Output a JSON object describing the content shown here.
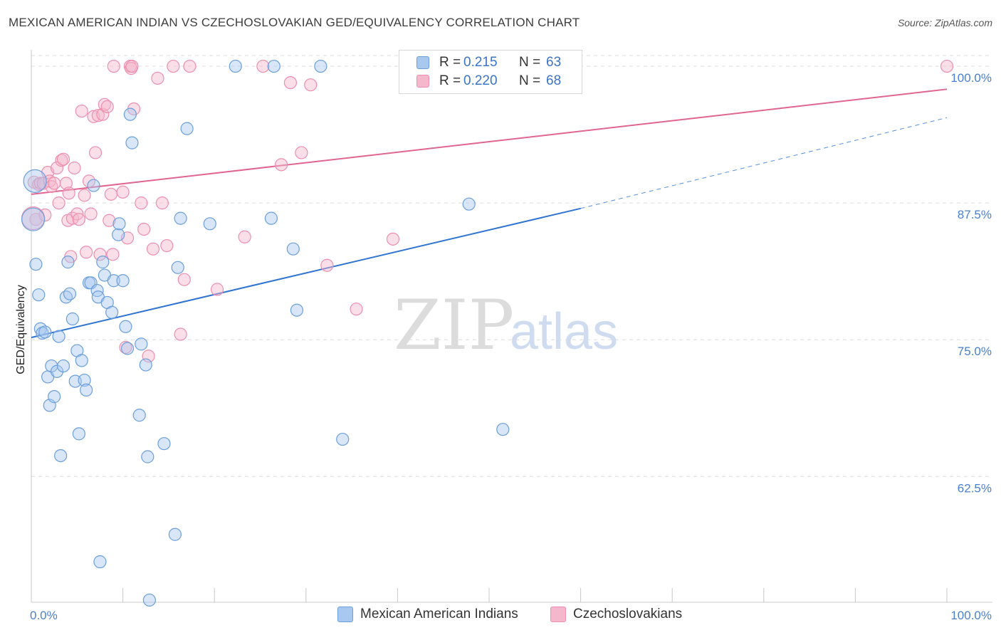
{
  "header": {
    "title": "MEXICAN AMERICAN INDIAN VS CZECHOSLOVAKIAN GED/EQUIVALENCY CORRELATION CHART",
    "source": "Source: ZipAtlas.com"
  },
  "watermark": {
    "part1": "ZIP",
    "part2": "atlas"
  },
  "legend": {
    "rows": [
      {
        "r_label": "R =",
        "r_value": "0.215",
        "n_label": "N =",
        "n_value": "63"
      },
      {
        "r_label": "R =",
        "r_value": "0.220",
        "n_label": "N =",
        "n_value": "68"
      }
    ]
  },
  "chart_data": {
    "type": "scatter",
    "title": "MEXICAN AMERICAN INDIAN VS CZECHOSLOVAKIAN GED/EQUIVALENCY CORRELATION CHART",
    "xlabel": "",
    "ylabel": "GED/Equivalency",
    "xlim": [
      0,
      100
    ],
    "ylim": [
      51.0,
      101.5
    ],
    "x_ticks": [
      {
        "value": 0,
        "label": "0.0%"
      },
      {
        "value": 100,
        "label": "100.0%"
      }
    ],
    "y_ticks": [
      {
        "value": 62.5,
        "label": "62.5%"
      },
      {
        "value": 75.0,
        "label": "75.0%"
      },
      {
        "value": 87.5,
        "label": "87.5%"
      },
      {
        "value": 100.0,
        "label": "100.0%"
      }
    ],
    "colors": {
      "blue_fill": "#a9c8ef",
      "blue_stroke": "#6b9fdc",
      "blue_line": "#2f74d0",
      "pink_fill": "#f5b7cb",
      "pink_stroke": "#ec8fae",
      "pink_line": "#e0668f",
      "tick_text": "#4a7fd0",
      "grid": "#dedede"
    },
    "series": [
      {
        "name": "Mexican American Indians",
        "r": 0.215,
        "n": 63,
        "trend": {
          "x0": 0,
          "y0": 75.2,
          "x1": 60,
          "y1": 87.0,
          "dashed_to_x": 100,
          "dashed_to_y": 95.3
        },
        "points": [
          [
            0.5,
            81.9
          ],
          [
            0.8,
            79.1
          ],
          [
            1.0,
            76.0
          ],
          [
            1.2,
            75.6
          ],
          [
            1.5,
            75.7
          ],
          [
            1.8,
            71.6
          ],
          [
            2.0,
            69.0
          ],
          [
            2.2,
            72.6
          ],
          [
            2.5,
            69.8
          ],
          [
            2.8,
            72.1
          ],
          [
            3.0,
            75.3
          ],
          [
            3.2,
            64.4
          ],
          [
            3.5,
            72.6
          ],
          [
            3.8,
            78.9
          ],
          [
            4.0,
            82.1
          ],
          [
            4.2,
            79.2
          ],
          [
            4.5,
            76.9
          ],
          [
            4.8,
            71.2
          ],
          [
            5.0,
            74.0
          ],
          [
            5.2,
            66.4
          ],
          [
            5.5,
            73.1
          ],
          [
            5.8,
            71.3
          ],
          [
            6.0,
            70.4
          ],
          [
            6.3,
            80.2
          ],
          [
            6.5,
            80.2
          ],
          [
            6.8,
            89.1
          ],
          [
            7.2,
            79.5
          ],
          [
            7.3,
            78.9
          ],
          [
            7.5,
            54.7
          ],
          [
            7.8,
            82.1
          ],
          [
            8.0,
            80.9
          ],
          [
            8.3,
            78.4
          ],
          [
            8.8,
            77.5
          ],
          [
            9.0,
            80.4
          ],
          [
            9.5,
            84.6
          ],
          [
            9.6,
            85.6
          ],
          [
            10.0,
            80.4
          ],
          [
            10.3,
            76.2
          ],
          [
            10.5,
            74.2
          ],
          [
            10.8,
            95.6
          ],
          [
            11.0,
            93.0
          ],
          [
            11.8,
            68.1
          ],
          [
            12.0,
            74.6
          ],
          [
            12.5,
            72.7
          ],
          [
            12.7,
            64.3
          ],
          [
            12.9,
            51.2
          ],
          [
            14.5,
            65.5
          ],
          [
            15.7,
            57.2
          ],
          [
            16.0,
            81.6
          ],
          [
            16.3,
            86.1
          ],
          [
            17.0,
            94.3
          ],
          [
            19.5,
            85.6
          ],
          [
            22.3,
            100.0
          ],
          [
            26.2,
            86.1
          ],
          [
            26.5,
            100.0
          ],
          [
            28.6,
            83.3
          ],
          [
            29.0,
            77.7
          ],
          [
            31.6,
            100.0
          ],
          [
            34.0,
            65.9
          ],
          [
            47.8,
            87.4
          ],
          [
            51.5,
            66.8
          ],
          [
            0.2,
            86.0
          ],
          [
            0.4,
            89.5
          ]
        ]
      },
      {
        "name": "Czechoslovakians",
        "r": 0.22,
        "n": 68,
        "trend": {
          "x0": 0,
          "y0": 88.3,
          "x1": 100,
          "y1": 97.9
        },
        "points": [
          [
            0.3,
            89.4
          ],
          [
            0.5,
            86.0
          ],
          [
            0.8,
            89.2
          ],
          [
            1.0,
            89.3
          ],
          [
            1.3,
            89.3
          ],
          [
            1.5,
            86.4
          ],
          [
            1.8,
            90.3
          ],
          [
            2.0,
            89.5
          ],
          [
            2.2,
            89.0
          ],
          [
            2.5,
            89.3
          ],
          [
            2.8,
            90.7
          ],
          [
            3.0,
            87.5
          ],
          [
            3.3,
            91.4
          ],
          [
            3.5,
            91.5
          ],
          [
            3.8,
            89.3
          ],
          [
            4.0,
            85.9
          ],
          [
            4.1,
            88.4
          ],
          [
            4.3,
            82.6
          ],
          [
            4.5,
            86.1
          ],
          [
            4.7,
            90.7
          ],
          [
            5.0,
            86.5
          ],
          [
            5.2,
            86.0
          ],
          [
            5.5,
            95.9
          ],
          [
            5.8,
            88.2
          ],
          [
            6.0,
            83.0
          ],
          [
            6.3,
            89.5
          ],
          [
            6.5,
            86.5
          ],
          [
            6.8,
            95.4
          ],
          [
            7.0,
            92.1
          ],
          [
            7.3,
            95.5
          ],
          [
            7.5,
            82.8
          ],
          [
            7.8,
            95.6
          ],
          [
            8.0,
            96.5
          ],
          [
            8.3,
            96.3
          ],
          [
            8.5,
            85.9
          ],
          [
            8.7,
            88.3
          ],
          [
            8.9,
            82.8
          ],
          [
            9.0,
            100.0
          ],
          [
            10.0,
            88.5
          ],
          [
            10.3,
            74.3
          ],
          [
            10.5,
            84.3
          ],
          [
            10.8,
            100.0
          ],
          [
            10.9,
            99.8
          ],
          [
            11.0,
            100.0
          ],
          [
            11.2,
            96.1
          ],
          [
            12.0,
            87.5
          ],
          [
            12.3,
            85.1
          ],
          [
            12.8,
            73.5
          ],
          [
            13.3,
            83.3
          ],
          [
            13.8,
            98.9
          ],
          [
            14.3,
            87.5
          ],
          [
            14.8,
            83.6
          ],
          [
            15.5,
            100.0
          ],
          [
            16.3,
            75.5
          ],
          [
            16.7,
            80.5
          ],
          [
            17.3,
            100.0
          ],
          [
            20.3,
            79.6
          ],
          [
            23.3,
            84.4
          ],
          [
            25.3,
            100.0
          ],
          [
            27.3,
            91.0
          ],
          [
            28.3,
            98.5
          ],
          [
            29.5,
            92.1
          ],
          [
            30.5,
            98.3
          ],
          [
            32.3,
            81.8
          ],
          [
            35.5,
            77.8
          ],
          [
            39.5,
            84.2
          ],
          [
            100.0,
            100.0
          ],
          [
            0.2,
            86.1
          ]
        ]
      }
    ]
  }
}
